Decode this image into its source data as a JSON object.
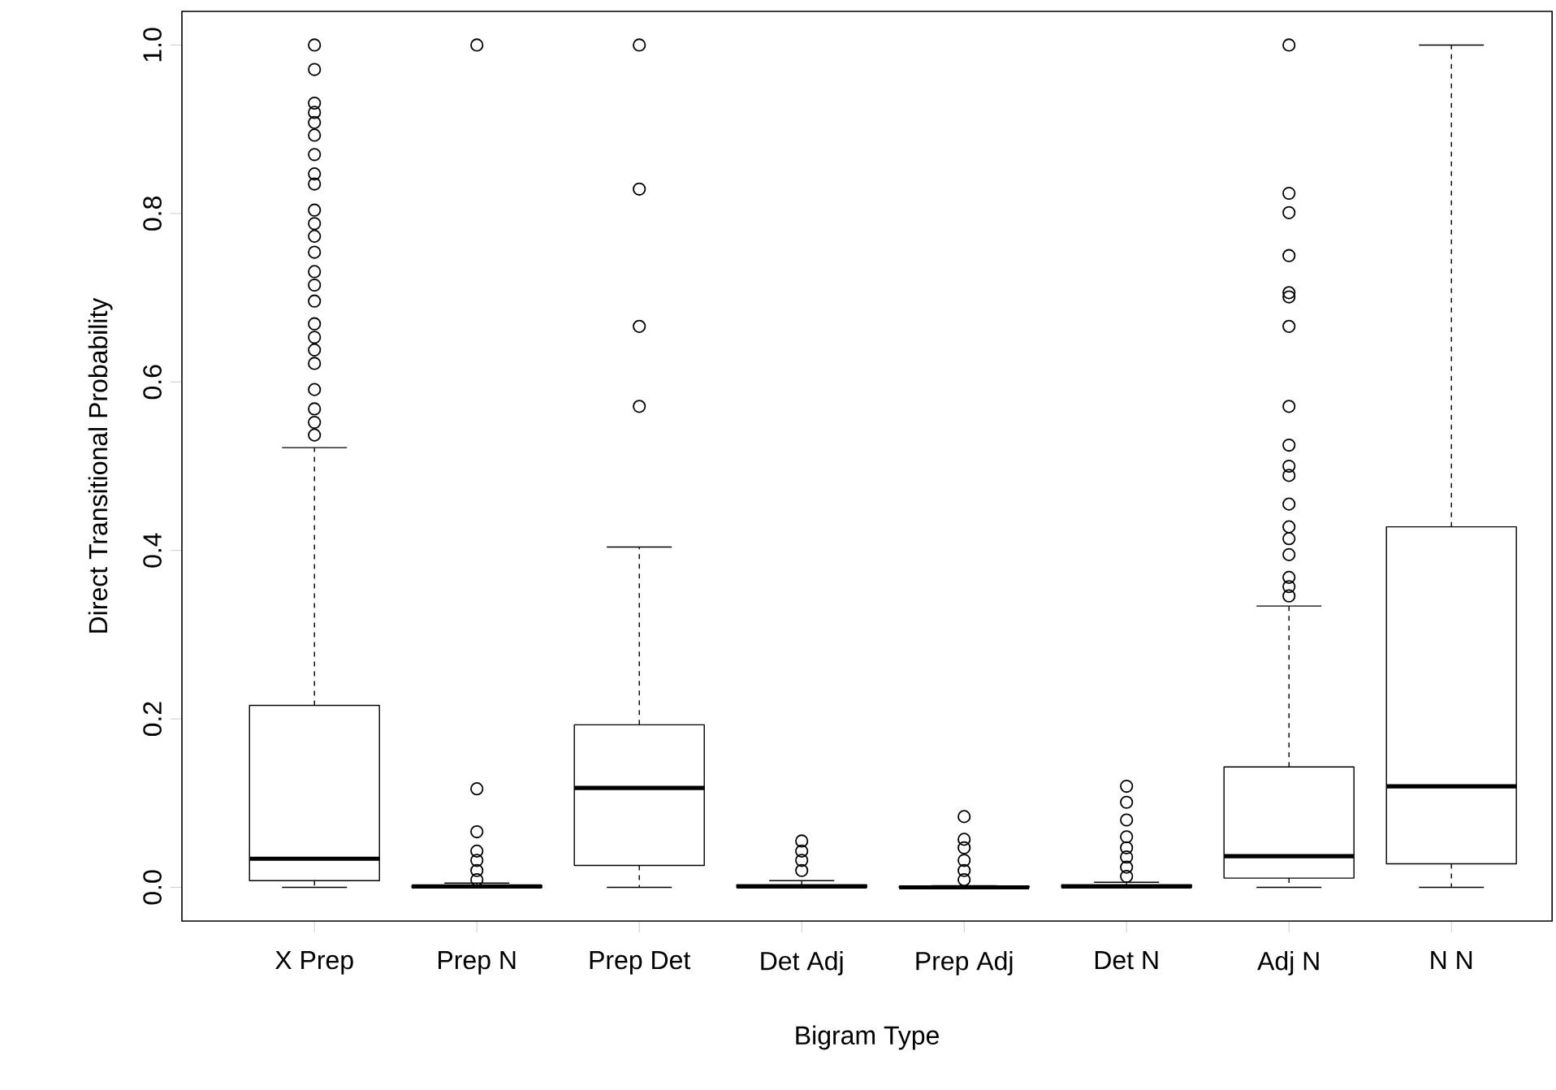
{
  "chart_data": {
    "type": "box",
    "xlabel": "Bigram Type",
    "ylabel": "Direct Transitional Probability",
    "categories": [
      "X Prep",
      "Prep N",
      "Prep Det",
      "Det Adj",
      "Prep Adj",
      "Det N",
      "Adj N",
      "N N"
    ],
    "ylim": [
      -0.04,
      1.04
    ],
    "yticks": [
      {
        "value": 0,
        "label": "0.0"
      },
      0.2,
      0.4,
      0.6,
      0.8,
      {
        "value": 1,
        "label": "1.0"
      }
    ],
    "marker": "circle",
    "line_style": "dashed",
    "boxes": [
      {
        "low": 0,
        "q1": 0.008,
        "median": 0.034,
        "q3": 0.216,
        "high": 0.522,
        "outliers": [
          1.0,
          0.971,
          0.931,
          0.92,
          0.908,
          0.893,
          0.87,
          0.847,
          0.835,
          0.804,
          0.788,
          0.773,
          0.754,
          0.731,
          0.715,
          0.696,
          0.669,
          0.653,
          0.638,
          0.622,
          0.591,
          0.568,
          0.552,
          0.537
        ]
      },
      {
        "low": 0,
        "q1": 0,
        "median": 0.001,
        "q3": 0.002,
        "high": 0.005,
        "outliers": [
          1.0,
          0.117,
          0.066,
          0.043,
          0.032,
          0.02,
          0.009
        ]
      },
      {
        "low": 0,
        "q1": 0.026,
        "median": 0.118,
        "q3": 0.193,
        "high": 0.404,
        "outliers": [
          1.0,
          0.829,
          0.666,
          0.571
        ]
      },
      {
        "low": 0,
        "q1": 0,
        "median": 0.001,
        "q3": 0.003,
        "high": 0.008,
        "outliers": [
          0.055,
          0.043,
          0.032,
          0.02
        ]
      },
      {
        "low": 0,
        "q1": 0,
        "median": 0,
        "q3": 0.001,
        "high": 0.002,
        "outliers": [
          0.084,
          0.057,
          0.047,
          0.032,
          0.02,
          0.009
        ]
      },
      {
        "low": 0,
        "q1": 0,
        "median": 0.001,
        "q3": 0.003,
        "high": 0.006,
        "outliers": [
          0.12,
          0.101,
          0.08,
          0.06,
          0.047,
          0.036,
          0.024,
          0.013
        ]
      },
      {
        "low": 0,
        "q1": 0.011,
        "median": 0.037,
        "q3": 0.143,
        "high": 0.334,
        "outliers": [
          1.0,
          0.824,
          0.801,
          0.75,
          0.706,
          0.701,
          0.666,
          0.571,
          0.525,
          0.5,
          0.489,
          0.455,
          0.428,
          0.414,
          0.395,
          0.368,
          0.357,
          0.346
        ]
      },
      {
        "low": 0,
        "q1": 0.028,
        "median": 0.12,
        "q3": 0.428,
        "high": 1.0
      }
    ]
  }
}
